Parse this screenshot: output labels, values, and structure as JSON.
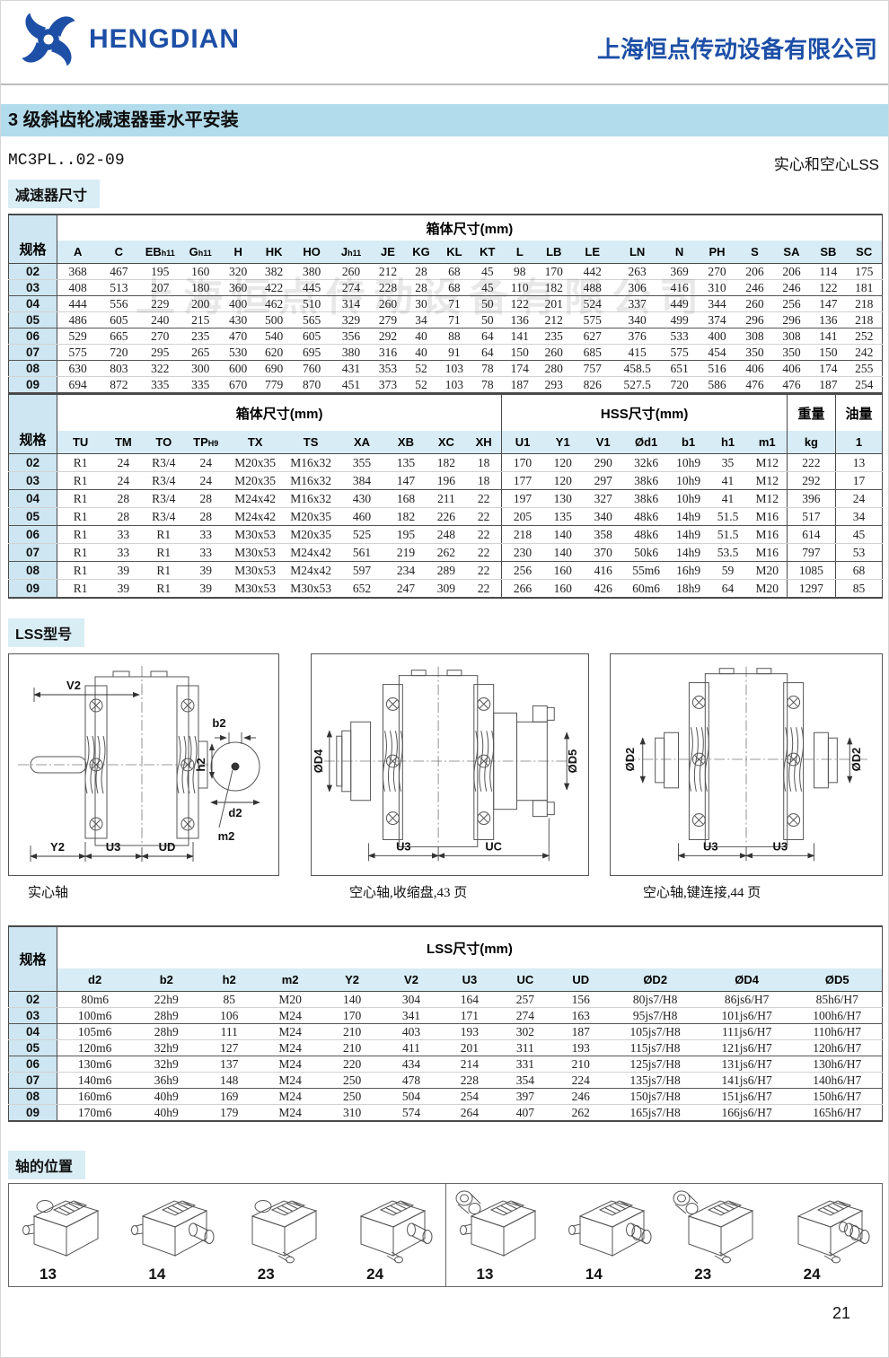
{
  "header": {
    "logo_text": "HENGDIAN",
    "company": "上海恒点传动设备有限公司"
  },
  "title_bar": "3 级斜齿轮减速器垂水平安装",
  "subtitle": {
    "model": "MC3PL..02-09",
    "variant": "实心和空心LSS"
  },
  "sections": {
    "dimensions": "减速器尺寸",
    "lss_models": "LSS型号",
    "shaft_positions": "轴的位置"
  },
  "watermark": "上海恒点传动设备有限公司",
  "page_number": "21",
  "table_box": {
    "name": "housing-dimensions-table-1",
    "title": "箱体尺寸(mm)",
    "spec_header": "规格",
    "headers": [
      {
        "t": "A"
      },
      {
        "t": "C"
      },
      {
        "t": "EB",
        "sub": "h11"
      },
      {
        "t": "G",
        "sub": "h11"
      },
      {
        "t": "H"
      },
      {
        "t": "HK"
      },
      {
        "t": "HO"
      },
      {
        "t": "J",
        "sub": "h11"
      },
      {
        "t": "JE"
      },
      {
        "t": "KG"
      },
      {
        "t": "KL"
      },
      {
        "t": "KT"
      },
      {
        "t": "L"
      },
      {
        "t": "LB"
      },
      {
        "t": "LE"
      },
      {
        "t": "LN"
      },
      {
        "t": "N"
      },
      {
        "t": "PH"
      },
      {
        "t": "S"
      },
      {
        "t": "SA"
      },
      {
        "t": "SB"
      },
      {
        "t": "SC"
      }
    ],
    "rows": [
      [
        "02",
        "368",
        "467",
        "195",
        "160",
        "320",
        "382",
        "380",
        "260",
        "212",
        "28",
        "68",
        "45",
        "98",
        "170",
        "442",
        "263",
        "369",
        "270",
        "206",
        "206",
        "114",
        "175"
      ],
      [
        "03",
        "408",
        "513",
        "207",
        "180",
        "360",
        "422",
        "445",
        "274",
        "228",
        "28",
        "68",
        "45",
        "110",
        "182",
        "488",
        "306",
        "416",
        "310",
        "246",
        "246",
        "122",
        "181"
      ],
      [
        "04",
        "444",
        "556",
        "229",
        "200",
        "400",
        "462",
        "510",
        "314",
        "260",
        "30",
        "71",
        "50",
        "122",
        "201",
        "524",
        "337",
        "449",
        "344",
        "260",
        "256",
        "147",
        "218"
      ],
      [
        "05",
        "486",
        "605",
        "240",
        "215",
        "430",
        "500",
        "565",
        "329",
        "279",
        "34",
        "71",
        "50",
        "136",
        "212",
        "575",
        "340",
        "499",
        "374",
        "296",
        "296",
        "136",
        "218"
      ],
      [
        "06",
        "529",
        "665",
        "270",
        "235",
        "470",
        "540",
        "605",
        "356",
        "292",
        "40",
        "88",
        "64",
        "141",
        "235",
        "627",
        "376",
        "533",
        "400",
        "308",
        "308",
        "141",
        "252"
      ],
      [
        "07",
        "575",
        "720",
        "295",
        "265",
        "530",
        "620",
        "695",
        "380",
        "316",
        "40",
        "91",
        "64",
        "150",
        "260",
        "685",
        "415",
        "575",
        "454",
        "350",
        "350",
        "150",
        "242"
      ],
      [
        "08",
        "630",
        "803",
        "322",
        "300",
        "600",
        "690",
        "760",
        "431",
        "353",
        "52",
        "103",
        "78",
        "174",
        "280",
        "757",
        "458.5",
        "651",
        "516",
        "406",
        "406",
        "174",
        "255"
      ],
      [
        "09",
        "694",
        "872",
        "335",
        "335",
        "670",
        "779",
        "870",
        "451",
        "373",
        "52",
        "103",
        "78",
        "187",
        "293",
        "826",
        "527.5",
        "720",
        "586",
        "476",
        "476",
        "187",
        "254"
      ]
    ]
  },
  "table_hss": {
    "name": "housing-hss-dimensions-table-2",
    "spec_header": "规格",
    "groups": [
      {
        "title": "箱体尺寸(mm)",
        "headers": [
          {
            "t": "TU"
          },
          {
            "t": "TM"
          },
          {
            "t": "TO"
          },
          {
            "t": "TP",
            "sub": "H9"
          },
          {
            "t": "TX"
          },
          {
            "t": "TS"
          },
          {
            "t": "XA"
          },
          {
            "t": "XB"
          },
          {
            "t": "XC"
          },
          {
            "t": "XH"
          }
        ]
      },
      {
        "title": "HSS尺寸(mm)",
        "headers": [
          {
            "t": "U1"
          },
          {
            "t": "Y1"
          },
          {
            "t": "V1"
          },
          {
            "t": "Ød1"
          },
          {
            "t": "b1"
          },
          {
            "t": "h1"
          },
          {
            "t": "m1"
          }
        ]
      },
      {
        "title": "重量",
        "headers": [
          {
            "t": "kg"
          }
        ]
      },
      {
        "title": "油量",
        "headers": [
          {
            "t": "1"
          }
        ]
      }
    ],
    "rows": [
      [
        "02",
        "R1",
        "24",
        "R3/4",
        "24",
        "M20x35",
        "M16x32",
        "355",
        "135",
        "182",
        "18",
        "170",
        "120",
        "290",
        "32k6",
        "10h9",
        "35",
        "M12",
        "222",
        "13"
      ],
      [
        "03",
        "R1",
        "24",
        "R3/4",
        "24",
        "M20x35",
        "M16x32",
        "384",
        "147",
        "196",
        "18",
        "177",
        "120",
        "297",
        "38k6",
        "10h9",
        "41",
        "M12",
        "292",
        "17"
      ],
      [
        "04",
        "R1",
        "28",
        "R3/4",
        "28",
        "M24x42",
        "M16x32",
        "430",
        "168",
        "211",
        "22",
        "197",
        "130",
        "327",
        "38k6",
        "10h9",
        "41",
        "M12",
        "396",
        "24"
      ],
      [
        "05",
        "R1",
        "28",
        "R3/4",
        "28",
        "M24x42",
        "M20x35",
        "460",
        "182",
        "226",
        "22",
        "205",
        "135",
        "340",
        "48k6",
        "14h9",
        "51.5",
        "M16",
        "517",
        "34"
      ],
      [
        "06",
        "R1",
        "33",
        "R1",
        "33",
        "M30x53",
        "M20x35",
        "525",
        "195",
        "248",
        "22",
        "218",
        "140",
        "358",
        "48k6",
        "14h9",
        "51.5",
        "M16",
        "614",
        "45"
      ],
      [
        "07",
        "R1",
        "33",
        "R1",
        "33",
        "M30x53",
        "M24x42",
        "561",
        "219",
        "262",
        "22",
        "230",
        "140",
        "370",
        "50k6",
        "14h9",
        "53.5",
        "M16",
        "797",
        "53"
      ],
      [
        "08",
        "R1",
        "39",
        "R1",
        "39",
        "M30x53",
        "M24x42",
        "597",
        "234",
        "289",
        "22",
        "256",
        "160",
        "416",
        "55m6",
        "16h9",
        "59",
        "M20",
        "1085",
        "68"
      ],
      [
        "09",
        "R1",
        "39",
        "R1",
        "39",
        "M30x53",
        "M30x53",
        "652",
        "247",
        "309",
        "22",
        "266",
        "160",
        "426",
        "60m6",
        "18h9",
        "64",
        "M20",
        "1297",
        "85"
      ]
    ]
  },
  "table_lss": {
    "name": "lss-dimensions-table-3",
    "title": "LSS尺寸(mm)",
    "spec_header": "规格",
    "headers": [
      {
        "t": "d2"
      },
      {
        "t": "b2"
      },
      {
        "t": "h2"
      },
      {
        "t": "m2"
      },
      {
        "t": "Y2"
      },
      {
        "t": "V2"
      },
      {
        "t": "U3"
      },
      {
        "t": "UC"
      },
      {
        "t": "UD"
      },
      {
        "t": "ØD2"
      },
      {
        "t": "ØD4"
      },
      {
        "t": "ØD5"
      }
    ],
    "rows": [
      [
        "02",
        "80m6",
        "22h9",
        "85",
        "M20",
        "140",
        "304",
        "164",
        "257",
        "156",
        "80js7/H8",
        "86js6/H7",
        "85h6/H7"
      ],
      [
        "03",
        "100m6",
        "28h9",
        "106",
        "M24",
        "170",
        "341",
        "171",
        "274",
        "163",
        "95js7/H8",
        "101js6/H7",
        "100h6/H7"
      ],
      [
        "04",
        "105m6",
        "28h9",
        "111",
        "M24",
        "210",
        "403",
        "193",
        "302",
        "187",
        "105js7/H8",
        "111js6/H7",
        "110h6/H7"
      ],
      [
        "05",
        "120m6",
        "32h9",
        "127",
        "M24",
        "210",
        "411",
        "201",
        "311",
        "193",
        "115js7/H8",
        "121js6/H7",
        "120h6/H7"
      ],
      [
        "06",
        "130m6",
        "32h9",
        "137",
        "M24",
        "220",
        "434",
        "214",
        "331",
        "210",
        "125js7/H8",
        "131js6/H7",
        "130h6/H7"
      ],
      [
        "07",
        "140m6",
        "36h9",
        "148",
        "M24",
        "250",
        "478",
        "228",
        "354",
        "224",
        "135js7/H8",
        "141js6/H7",
        "140h6/H7"
      ],
      [
        "08",
        "160m6",
        "40h9",
        "169",
        "M24",
        "250",
        "504",
        "254",
        "397",
        "246",
        "150js7/H8",
        "151js6/H7",
        "150h6/H7"
      ],
      [
        "09",
        "170m6",
        "40h9",
        "179",
        "M24",
        "310",
        "574",
        "264",
        "407",
        "262",
        "165js7/H8",
        "166js6/H7",
        "165h6/H7"
      ]
    ]
  },
  "drawings": {
    "captions": [
      "实心轴",
      "空心轴,收缩盘,43 页",
      "空心轴,键连接,44 页"
    ],
    "d1": {
      "v2": "V2",
      "b2": "b2",
      "h2": "h2",
      "d2": "d2",
      "m2": "m2",
      "y2": "Y2",
      "u3": "U3",
      "ud": "UD"
    },
    "d2": {
      "dd4": "ØD4",
      "dd5": "ØD5",
      "u3": "U3",
      "uc": "UC"
    },
    "d3": {
      "dd2l": "ØD2",
      "dd2r": "ØD2",
      "u3l": "U3",
      "u3r": "U3"
    }
  },
  "positions": {
    "labels": [
      "13",
      "14",
      "23",
      "24",
      "13",
      "14",
      "23",
      "24"
    ]
  }
}
